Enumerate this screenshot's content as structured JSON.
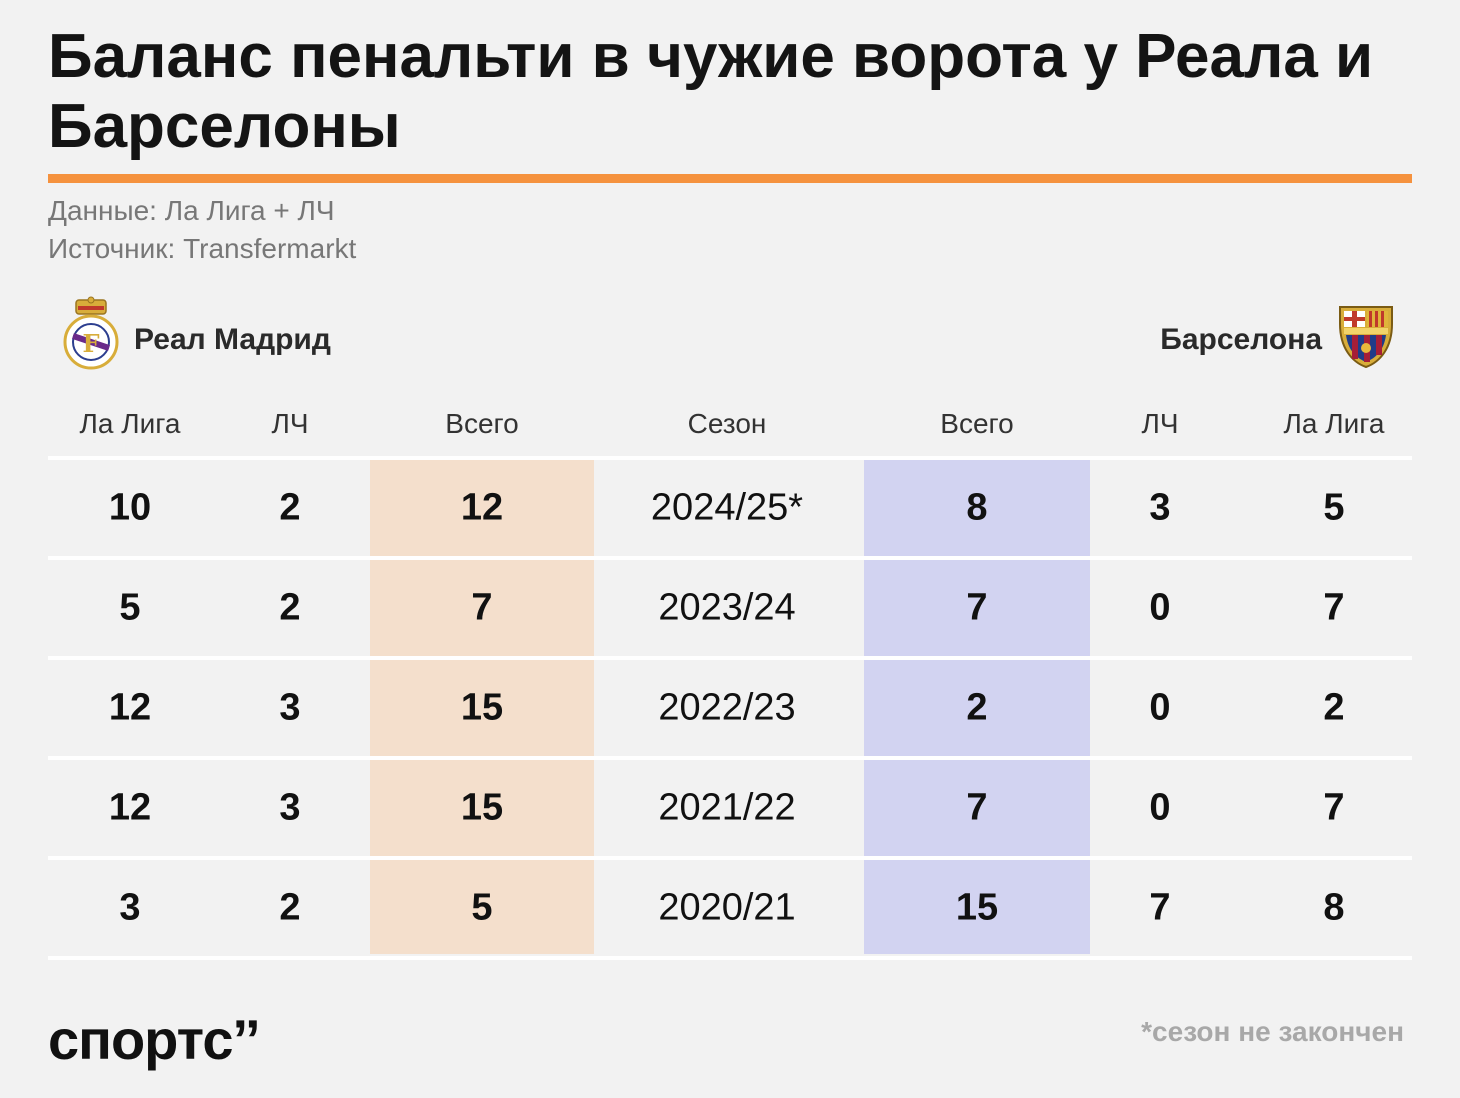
{
  "title": "Баланс пенальти в чужие ворота у Реала и Барселоны",
  "meta": {
    "data_line": "Данные: Ла Лига + ЛЧ",
    "source_line": "Источник: Transfermarkt"
  },
  "teams": {
    "left": "Реал Мадрид",
    "right": "Барселона"
  },
  "colors": {
    "accent": "#f5923e",
    "real_band": "#f4dfcc",
    "barca_band": "#d2d3f1"
  },
  "footnote": "*сезон не закончен",
  "brand": "спортс’’",
  "chart_data": {
    "type": "table",
    "columns": [
      "Ла Лига",
      "ЛЧ",
      "Всего",
      "Сезон",
      "Всего",
      "ЛЧ",
      "Ла Лига"
    ],
    "rows": [
      {
        "rm_laliga": "10",
        "rm_ucl": "2",
        "rm_total": "12",
        "season": "2024/25*",
        "fcb_total": "8",
        "fcb_ucl": "3",
        "fcb_laliga": "5"
      },
      {
        "rm_laliga": "5",
        "rm_ucl": "2",
        "rm_total": "7",
        "season": "2023/24",
        "fcb_total": "7",
        "fcb_ucl": "0",
        "fcb_laliga": "7"
      },
      {
        "rm_laliga": "12",
        "rm_ucl": "3",
        "rm_total": "15",
        "season": "2022/23",
        "fcb_total": "2",
        "fcb_ucl": "0",
        "fcb_laliga": "2"
      },
      {
        "rm_laliga": "12",
        "rm_ucl": "3",
        "rm_total": "15",
        "season": "2021/22",
        "fcb_total": "7",
        "fcb_ucl": "0",
        "fcb_laliga": "7"
      },
      {
        "rm_laliga": "3",
        "rm_ucl": "2",
        "rm_total": "5",
        "season": "2020/21",
        "fcb_total": "15",
        "fcb_ucl": "7",
        "fcb_laliga": "8"
      }
    ]
  }
}
